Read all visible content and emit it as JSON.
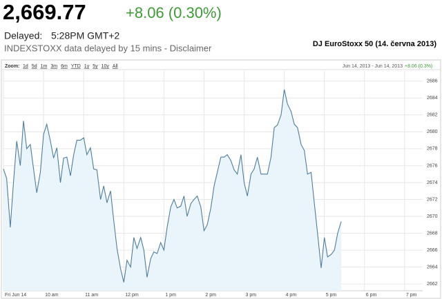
{
  "header": {
    "price": "2,669.77",
    "change": "+8.06 (0.30%)",
    "delayed_label": "Delayed:",
    "time": "5:28PM GMT+2",
    "source": "INDEXSTOXX data delayed by 15 mins - Disclaimer"
  },
  "chart_data": {
    "type": "area",
    "title": "DJ EuroStoxx 50 (14. června 2013)",
    "toolbar": {
      "label": "Zoom:",
      "options": [
        "1d",
        "5d",
        "1m",
        "3m",
        "6m",
        "YTD",
        "1y",
        "5y",
        "10y",
        "All"
      ],
      "range": "Jun 14, 2013 - Jun 14, 2013",
      "change": "+8.06 (0.3%)"
    },
    "color": "#4d7d9c",
    "fill": "#eaf4fb",
    "grid": true,
    "xlim": [
      9,
      19.45
    ],
    "xticks": [
      {
        "value": 9,
        "label": "Fri Jun 14"
      },
      {
        "value": 10,
        "label": "10 am"
      },
      {
        "value": 11,
        "label": "11 am"
      },
      {
        "value": 12,
        "label": "12 pm"
      },
      {
        "value": 13,
        "label": "1 pm"
      },
      {
        "value": 14,
        "label": "2 pm"
      },
      {
        "value": 15,
        "label": "3 pm"
      },
      {
        "value": 16,
        "label": "4 pm"
      },
      {
        "value": 17,
        "label": "5 pm"
      },
      {
        "value": 18,
        "label": "6 pm"
      },
      {
        "value": 19,
        "label": "7 pm"
      }
    ],
    "ylim": [
      2661.2,
      2687.2
    ],
    "yticks": [
      2662,
      2664,
      2666,
      2668,
      2670,
      2672,
      2674,
      2676,
      2678,
      2680,
      2682,
      2684,
      2686
    ],
    "x": [
      9.0,
      9.08,
      9.17,
      9.25,
      9.33,
      9.42,
      9.5,
      9.58,
      9.67,
      9.75,
      9.83,
      9.92,
      10.0,
      10.08,
      10.17,
      10.25,
      10.33,
      10.42,
      10.5,
      10.58,
      10.67,
      10.75,
      10.83,
      10.92,
      11.0,
      11.08,
      11.17,
      11.25,
      11.33,
      11.42,
      11.5,
      11.58,
      11.67,
      11.75,
      11.83,
      11.92,
      12.0,
      12.08,
      12.17,
      12.25,
      12.33,
      12.42,
      12.5,
      12.58,
      12.67,
      12.75,
      12.83,
      12.92,
      13.0,
      13.08,
      13.17,
      13.25,
      13.33,
      13.42,
      13.5,
      13.58,
      13.67,
      13.75,
      13.83,
      13.92,
      14.0,
      14.08,
      14.17,
      14.25,
      14.33,
      14.42,
      14.5,
      14.58,
      14.67,
      14.75,
      14.83,
      14.92,
      15.0,
      15.08,
      15.17,
      15.25,
      15.33,
      15.42,
      15.5,
      15.58,
      15.67,
      15.75,
      15.83,
      15.92,
      16.0,
      16.08,
      16.17,
      16.25,
      16.33,
      16.42,
      16.5,
      16.58,
      16.67,
      16.75,
      16.83,
      16.92,
      17.0,
      17.08,
      17.17,
      17.25,
      17.33,
      17.42
    ],
    "values": [
      2675.6,
      2674.5,
      2668.7,
      2674.0,
      2678.9,
      2676.0,
      2681.3,
      2678.0,
      2678.5,
      2675.6,
      2672.8,
      2675.2,
      2679.7,
      2680.9,
      2678.9,
      2676.9,
      2678.1,
      2674.0,
      2676.9,
      2677.0,
      2674.8,
      2677.3,
      2679.0,
      2679.0,
      2679.3,
      2677.3,
      2678.1,
      2675.6,
      2675.5,
      2672.0,
      2673.6,
      2671.6,
      2673.0,
      2669.5,
      2666.2,
      2663.8,
      2662.2,
      2664.8,
      2664.0,
      2667.5,
      2666.2,
      2667.5,
      2666.0,
      2662.8,
      2665.0,
      2665.8,
      2665.6,
      2666.9,
      2666.0,
      2668.7,
      2671.1,
      2672.0,
      2671.0,
      2671.2,
      2672.4,
      2670.0,
      2671.5,
      2672.0,
      2672.4,
      2671.1,
      2668.3,
      2669.0,
      2671.0,
      2673.6,
      2675.2,
      2677.0,
      2677.0,
      2677.3,
      2676.6,
      2675.5,
      2675.0,
      2677.3,
      2674.0,
      2672.4,
      2675.0,
      2675.6,
      2677.0,
      2675.0,
      2675.0,
      2675.0,
      2677.0,
      2680.5,
      2680.8,
      2682.0,
      2685.0,
      2683.3,
      2682.4,
      2680.9,
      2680.5,
      2678.5,
      2677.8,
      2675.0,
      2675.2,
      2671.5,
      2668.0,
      2663.9,
      2667.5,
      2665.2,
      2665.5,
      2666.0,
      2668.0,
      2669.4
    ]
  }
}
